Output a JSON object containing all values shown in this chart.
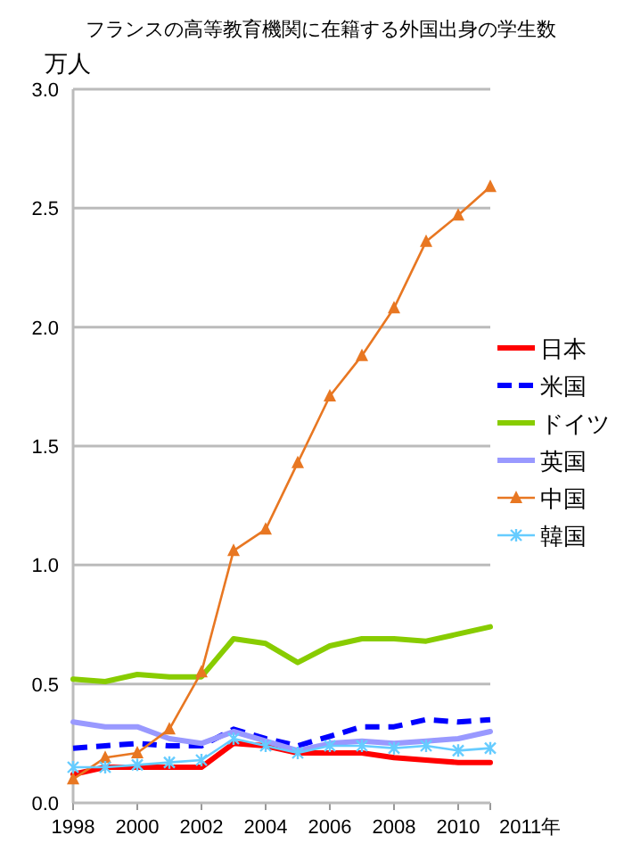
{
  "chart_data": {
    "type": "line",
    "title": "フランスの高等教育機関に在籍する外国出身の学生数",
    "ylabel": "万人",
    "x": [
      1998,
      1999,
      2000,
      2001,
      2002,
      2003,
      2004,
      2005,
      2006,
      2007,
      2008,
      2009,
      2010,
      2011
    ],
    "xlim": [
      1998,
      2011
    ],
    "xticks": [
      1998,
      2000,
      2002,
      2004,
      2006,
      2008,
      2010,
      {
        "value": 2011,
        "label": null
      }
    ],
    "xlabel": "2011年",
    "ylim": [
      0,
      3
    ],
    "yticks": [
      {
        "value": 0,
        "label": "0.0"
      },
      {
        "value": 0.5,
        "label": "0.5"
      },
      {
        "value": 1,
        "label": "1.0"
      },
      {
        "value": 1.5,
        "label": "1.5"
      },
      {
        "value": 2,
        "label": "2.0"
      },
      {
        "value": 2.5,
        "label": "2.5"
      },
      {
        "value": 3,
        "label": "3.0"
      }
    ],
    "grid": "y",
    "legend": "right",
    "series": [
      {
        "name": "日本",
        "color": "#ff0000",
        "values": [
          0.12,
          0.15,
          0.15,
          0.15,
          0.15,
          0.25,
          0.24,
          0.21,
          0.21,
          0.21,
          0.19,
          0.18,
          0.17,
          0.17
        ]
      },
      {
        "name": "米国",
        "color": "#0000ff",
        "line_style": "dashed",
        "values": [
          0.23,
          0.24,
          0.25,
          0.24,
          0.24,
          0.31,
          0.27,
          0.24,
          0.28,
          0.32,
          0.32,
          0.35,
          0.34,
          0.35
        ]
      },
      {
        "name": "ドイツ",
        "color": "#88cc00",
        "values": [
          0.52,
          0.51,
          0.54,
          0.53,
          0.53,
          0.69,
          0.67,
          0.59,
          0.66,
          0.69,
          0.69,
          0.68,
          0.71,
          0.74
        ]
      },
      {
        "name": "英国",
        "color": "#9999ff",
        "values": [
          0.34,
          0.32,
          0.32,
          0.27,
          0.25,
          0.3,
          0.26,
          0.22,
          0.25,
          0.26,
          0.25,
          0.26,
          0.27,
          0.3
        ]
      },
      {
        "name": "中国",
        "color": "#e87722",
        "marker": "triangle",
        "values": [
          0.1,
          0.19,
          0.21,
          0.31,
          0.55,
          1.06,
          1.15,
          1.43,
          1.71,
          1.88,
          2.08,
          2.36,
          2.47,
          2.59
        ]
      },
      {
        "name": "韓国",
        "color": "#66ccff",
        "marker": "cross",
        "values": [
          0.15,
          0.15,
          0.16,
          0.17,
          0.18,
          0.27,
          0.24,
          0.21,
          0.24,
          0.24,
          0.23,
          0.24,
          0.22,
          0.23
        ]
      }
    ]
  }
}
